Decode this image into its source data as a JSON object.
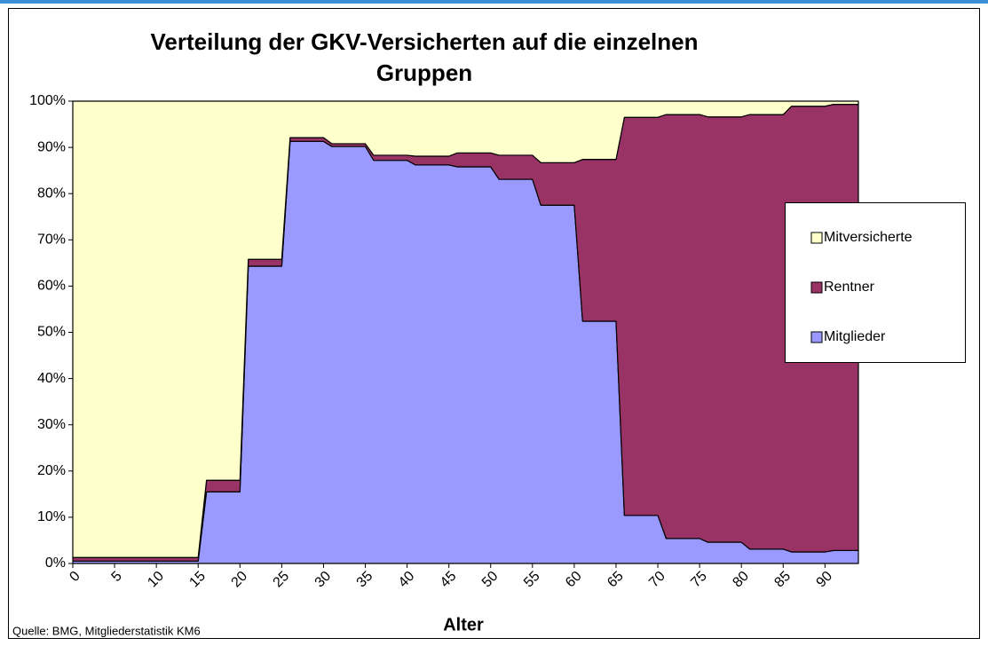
{
  "chart_data": {
    "type": "stacked_area",
    "title": [
      "Verteilung der GKV-Versicherten auf die einzelnen",
      "Gruppen"
    ],
    "x_label": "Alter",
    "source": "Quelle: BMG, Mitgliederstatistik KM6",
    "x": [
      0,
      15,
      16,
      20,
      21,
      25,
      26,
      30,
      31,
      35,
      36,
      40,
      41,
      45,
      46,
      50,
      51,
      55,
      56,
      60,
      61,
      65,
      66,
      70,
      71,
      75,
      76,
      80,
      81,
      85,
      86,
      90,
      91,
      94
    ],
    "xlim": [
      0,
      94
    ],
    "xticks": [
      0,
      5,
      10,
      15,
      20,
      25,
      30,
      35,
      40,
      45,
      50,
      55,
      60,
      65,
      70,
      75,
      80,
      85,
      90
    ],
    "ylim": [
      0,
      100
    ],
    "yticks": [
      {
        "value": 0,
        "label": "0%"
      },
      {
        "value": 10,
        "label": "10%"
      },
      {
        "value": 20,
        "label": "20%"
      },
      {
        "value": 30,
        "label": "30%"
      },
      {
        "value": 40,
        "label": "40%"
      },
      {
        "value": 50,
        "label": "50%"
      },
      {
        "value": 60,
        "label": "60%"
      },
      {
        "value": 70,
        "label": "70%"
      },
      {
        "value": 80,
        "label": "80%"
      },
      {
        "value": 90,
        "label": "90%"
      },
      {
        "value": 100,
        "label": "100%"
      }
    ],
    "grid": false,
    "legend": "right",
    "series": [
      {
        "name": "Mitglieder",
        "color": "#9999ff",
        "values": [
          0.5,
          0.5,
          15.5,
          15.5,
          64.3,
          64.3,
          91.3,
          91.3,
          90.2,
          90.2,
          87.2,
          87.2,
          86.2,
          86.2,
          85.8,
          85.8,
          83.1,
          83.1,
          77.5,
          77.5,
          52.4,
          52.4,
          10.4,
          10.4,
          5.4,
          5.4,
          4.6,
          4.6,
          3.1,
          3.1,
          2.5,
          2.5,
          2.8,
          2.8
        ]
      },
      {
        "name": "Rentner",
        "color": "#993366",
        "values": [
          0.8,
          0.8,
          2.5,
          2.5,
          1.5,
          1.5,
          0.8,
          0.8,
          0.6,
          0.6,
          1.1,
          1.1,
          1.9,
          1.9,
          3.0,
          3.0,
          5.2,
          5.2,
          9.2,
          9.2,
          35.0,
          35.0,
          86.1,
          86.1,
          91.7,
          91.7,
          92.0,
          92.0,
          94.0,
          94.0,
          96.4,
          96.4,
          96.5,
          96.5
        ]
      },
      {
        "name": "Mitversicherte",
        "color": "#ffffcc",
        "values": [
          98.7,
          98.7,
          82.0,
          82.0,
          34.2,
          34.2,
          7.9,
          7.9,
          9.2,
          9.2,
          11.7,
          11.7,
          11.9,
          11.9,
          11.2,
          11.2,
          11.7,
          11.7,
          13.3,
          13.3,
          12.6,
          12.6,
          3.5,
          3.5,
          2.9,
          2.9,
          3.4,
          3.4,
          2.9,
          2.9,
          1.1,
          1.1,
          0.7,
          0.7
        ]
      }
    ]
  }
}
